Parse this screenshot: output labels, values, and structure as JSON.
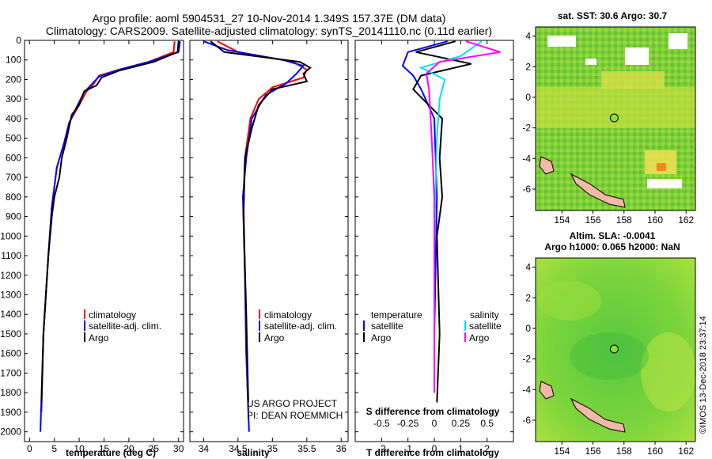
{
  "titles": {
    "line1": "Argo profile: aoml 5904531_27 10-Nov-2014 1.349S 157.37E (DM data)",
    "line2": "Climatology: CARS2009. Satellite-adjusted climatology: synTS_20141110.nc (0.11d earlier)"
  },
  "credits": {
    "project": "US ARGO PROJECT",
    "pi": "PI: DEAN ROEMMICH"
  },
  "watermark": "©IMOS 13-Dec-2018 23:37:14",
  "colors": {
    "climatology": "#ff0000",
    "satellite": "#0000ff",
    "argo": "#000000",
    "sal_satellite": "#00e0ff",
    "sal_argo": "#ff00ff"
  },
  "chart_data": [
    {
      "type": "line",
      "xlabel": "temperature (deg C)",
      "ylim": [
        2050,
        0
      ],
      "xlim": [
        -1,
        31
      ],
      "xticks": [
        "0",
        "5",
        "10",
        "15",
        "20",
        "25",
        "30"
      ],
      "xtick_values": [
        0,
        5,
        10,
        15,
        20,
        25,
        30
      ],
      "yticks": [
        "0",
        "100",
        "200",
        "300",
        "400",
        "500",
        "600",
        "700",
        "800",
        "900",
        "1000",
        "1100",
        "1200",
        "1300",
        "1400",
        "1500",
        "1600",
        "1700",
        "1800",
        "1900",
        "2000"
      ],
      "ytick_values": [
        0,
        100,
        200,
        300,
        400,
        500,
        600,
        700,
        800,
        900,
        1000,
        1100,
        1200,
        1300,
        1400,
        1500,
        1600,
        1700,
        1800,
        1900,
        2000
      ],
      "legend": [
        "climatology",
        "satellite-adj. clim.",
        "Argo"
      ],
      "series": [
        {
          "name": "climatology",
          "color": "#ff0000",
          "x": [
            29.2,
            29.0,
            24,
            18,
            14,
            13,
            11.5,
            10,
            8,
            7,
            5.5,
            4.5,
            3.8,
            2.8,
            2.4
          ],
          "y": [
            5,
            60,
            110,
            150,
            180,
            220,
            260,
            330,
            420,
            520,
            650,
            850,
            1100,
            1500,
            1900
          ]
        },
        {
          "name": "satellite-adj. clim.",
          "color": "#0000ff",
          "x": [
            30.3,
            30.0,
            24,
            18,
            14,
            12.5,
            11,
            9.5,
            8,
            7,
            5.5,
            4.5,
            3.8,
            2.8,
            2.2
          ],
          "y": [
            5,
            60,
            110,
            150,
            185,
            225,
            265,
            340,
            420,
            520,
            650,
            850,
            1100,
            1500,
            2000
          ]
        },
        {
          "name": "Argo",
          "color": "#000000",
          "x": [
            30.0,
            29.8,
            25,
            18,
            14.5,
            13.5,
            11,
            10,
            8.5,
            8,
            7.5,
            6.5,
            6,
            5,
            4.5,
            3.8,
            2.8,
            2.4
          ],
          "y": [
            5,
            60,
            110,
            155,
            190,
            230,
            260,
            330,
            380,
            440,
            500,
            600,
            700,
            800,
            900,
            1100,
            1500,
            1850
          ]
        }
      ]
    },
    {
      "type": "line",
      "xlabel": "salinity",
      "ylim": [
        2050,
        0
      ],
      "xlim": [
        33.8,
        36.1
      ],
      "xticks": [
        "34",
        "34.5",
        "35",
        "35.5",
        "36"
      ],
      "xtick_values": [
        34,
        34.5,
        35,
        35.5,
        36
      ],
      "legend": [
        "climatology",
        "satellite-adj. clim.",
        "Argo"
      ],
      "series": [
        {
          "name": "climatology",
          "color": "#ff0000",
          "x": [
            34.2,
            34.5,
            35.3,
            35.5,
            35.45,
            35.0,
            34.8,
            34.68,
            34.6,
            34.58,
            34.6,
            34.62,
            34.65
          ],
          "y": [
            5,
            60,
            110,
            150,
            190,
            240,
            300,
            400,
            600,
            800,
            1200,
            1600,
            1900
          ]
        },
        {
          "name": "satellite-adj. clim.",
          "color": "#0000ff",
          "x": [
            34.0,
            34.35,
            35.15,
            35.45,
            35.35,
            35.2,
            34.9,
            34.7,
            34.62,
            34.57,
            34.6,
            34.62,
            34.66
          ],
          "y": [
            5,
            50,
            100,
            130,
            170,
            220,
            280,
            400,
            600,
            800,
            1200,
            1600,
            2000
          ]
        },
        {
          "name": "Argo",
          "color": "#000000",
          "x": [
            34.1,
            34.3,
            35.4,
            35.55,
            35.45,
            35.5,
            35.0,
            34.8,
            34.7,
            34.6,
            34.58,
            34.62,
            34.65
          ],
          "y": [
            5,
            60,
            110,
            140,
            170,
            210,
            250,
            330,
            450,
            600,
            900,
            1400,
            1850
          ]
        }
      ]
    },
    {
      "type": "line",
      "xlabel": "T difference from climatology",
      "xlabel2": "S difference from climatology",
      "ylim": [
        2050,
        0
      ],
      "xlim": [
        -3,
        3
      ],
      "xticks": [
        "-2",
        "-1",
        "0",
        "1",
        "2"
      ],
      "xtick_values": [
        -2,
        -1,
        0,
        1,
        2
      ],
      "xticks2": [
        "-0.5",
        "-0.25",
        "0",
        "0.25",
        "0.5"
      ],
      "xtick2_values": [
        -0.5,
        -0.25,
        0,
        0.25,
        0.5
      ],
      "legend_left_title": "temperature",
      "legend_right_title": "salinity",
      "legend_left": [
        "satellite",
        "Argo"
      ],
      "legend_right": [
        "satellite",
        "Argo"
      ],
      "series": [
        {
          "name": "T satellite",
          "color": "#0000ff",
          "x": [
            0.5,
            -1.0,
            -1.2,
            -0.8,
            -0.5,
            0,
            0.1,
            0,
            0
          ],
          "y": [
            5,
            60,
            130,
            180,
            250,
            400,
            800,
            1500,
            1800
          ]
        },
        {
          "name": "T Argo",
          "color": "#000000",
          "x": [
            0.8,
            -0.7,
            1.4,
            -0.5,
            -0.8,
            0.3,
            0.2,
            0.3,
            0.1,
            0.2,
            0.1
          ],
          "y": [
            5,
            60,
            120,
            180,
            250,
            400,
            600,
            800,
            1000,
            1500,
            1850
          ]
        },
        {
          "name": "S satellite",
          "color": "#00e0ff",
          "x": [
            1.8,
            1.0,
            -0.5,
            0.4,
            0.2,
            0.1,
            0,
            0
          ],
          "y": [
            5,
            80,
            140,
            200,
            300,
            500,
            1000,
            1800
          ]
        },
        {
          "name": "S Argo",
          "color": "#ff00ff",
          "x": [
            1.2,
            2.5,
            0.2,
            -0.3,
            -0.2,
            -0.1,
            0,
            0,
            0
          ],
          "y": [
            5,
            60,
            110,
            170,
            250,
            500,
            800,
            1500,
            1800
          ]
        }
      ]
    },
    {
      "type": "heatmap",
      "title": "sat. SST: 30.6 Argo: 30.7",
      "xticks": [
        "154",
        "156",
        "158",
        "160",
        "162"
      ],
      "xtick_values": [
        154,
        156,
        158,
        160,
        162
      ],
      "yticks": [
        "4",
        "2",
        "0",
        "-2",
        "-4",
        "-6"
      ],
      "ytick_values": [
        4,
        2,
        0,
        -2,
        -4,
        -6
      ],
      "xlim": [
        152.3,
        162.6
      ],
      "ylim": [
        -7.4,
        4.6
      ],
      "marker": {
        "lon": 157.37,
        "lat": -1.349
      }
    },
    {
      "type": "heatmap",
      "title": "Altim. SLA: -0.0041",
      "subtitle": "Argo h1000: 0.065 h2000: NaN",
      "xticks": [
        "154",
        "156",
        "158",
        "160",
        "162"
      ],
      "xtick_values": [
        154,
        156,
        158,
        160,
        162
      ],
      "yticks": [
        "4",
        "2",
        "0",
        "-2",
        "-4",
        "-6"
      ],
      "ytick_values": [
        4,
        2,
        0,
        -2,
        -4,
        -6
      ],
      "xlim": [
        152.3,
        162.6
      ],
      "ylim": [
        -7.4,
        4.6
      ],
      "marker": {
        "lon": 157.37,
        "lat": -1.349
      }
    }
  ]
}
